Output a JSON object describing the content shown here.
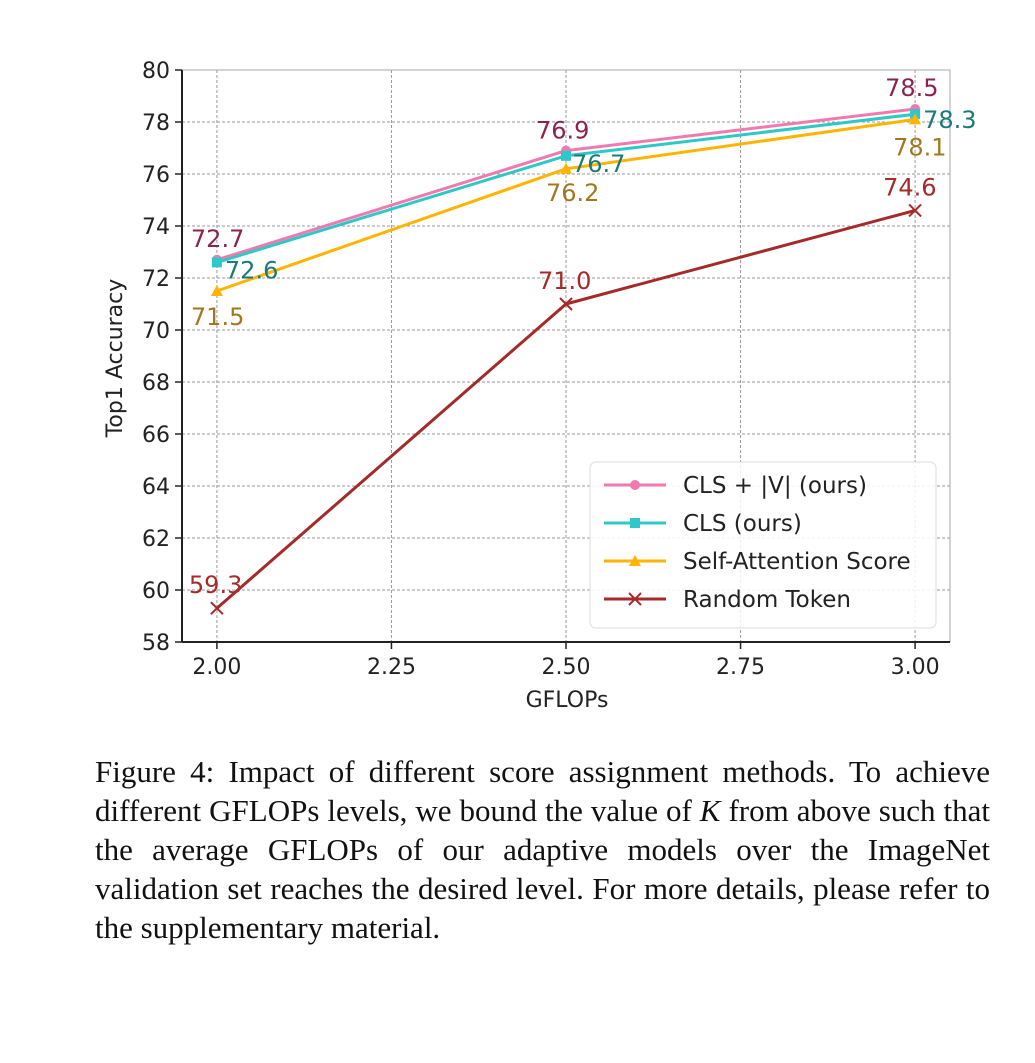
{
  "chart_data": {
    "type": "line",
    "xlabel": "GFLOPs",
    "ylabel": "Top1 Accuracy",
    "x": [
      2.0,
      2.5,
      3.0
    ],
    "xlim": [
      1.95,
      3.05
    ],
    "ylim": [
      58,
      80
    ],
    "xticks": [
      "2.00",
      "2.25",
      "2.50",
      "2.75",
      "3.00"
    ],
    "xtick_values": [
      2.0,
      2.25,
      2.5,
      2.75,
      3.0
    ],
    "yticks": [
      58,
      60,
      62,
      64,
      66,
      68,
      70,
      72,
      74,
      76,
      78,
      80
    ],
    "grid": true,
    "legend_position": "lower-right",
    "series": [
      {
        "name": "CLS + |V| (ours)",
        "values": [
          72.7,
          76.9,
          78.5
        ],
        "labels": [
          "72.7",
          "76.9",
          "78.5"
        ],
        "color": "#f07ab0",
        "label_color": "#8b2252",
        "marker": "circle"
      },
      {
        "name": "CLS (ours)",
        "values": [
          72.6,
          76.7,
          78.3
        ],
        "labels": [
          "72.6",
          "76.7",
          "78.3"
        ],
        "color": "#2ec8c8",
        "label_color": "#1a7a7a",
        "marker": "square"
      },
      {
        "name": "Self-Attention Score",
        "values": [
          71.5,
          76.2,
          78.1
        ],
        "labels": [
          "71.5",
          "76.2",
          "78.1"
        ],
        "color": "#ffb400",
        "label_color": "#a07820",
        "marker": "triangle"
      },
      {
        "name": "Random Token",
        "values": [
          59.3,
          71.0,
          74.6
        ],
        "labels": [
          "59.3",
          "71.0",
          "74.6"
        ],
        "color": "#a52a2a",
        "label_color": "#a52a2a",
        "marker": "x"
      }
    ]
  },
  "caption": {
    "before_k": "Figure 4: Impact of different score assignment methods. To achieve different GFLOPs levels, we bound the value of ",
    "k": "K",
    "after_k": " from above such that the average GFLOPs of our adaptive models over the ImageNet validation set reaches the desired level. For more details, please refer to the supplementary material."
  }
}
